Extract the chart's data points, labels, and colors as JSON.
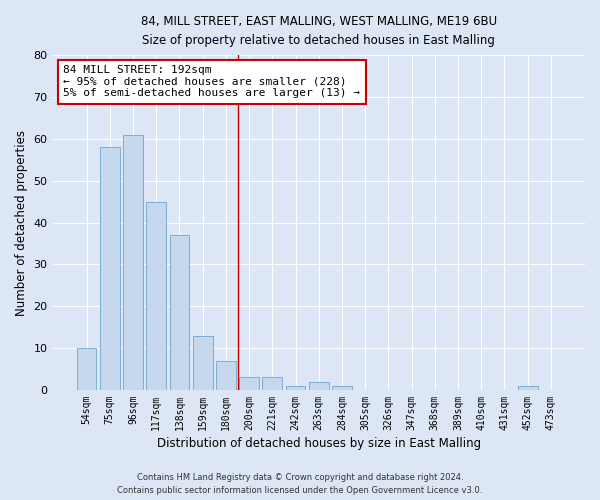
{
  "title_line1": "84, MILL STREET, EAST MALLING, WEST MALLING, ME19 6BU",
  "title_line2": "Size of property relative to detached houses in East Malling",
  "xlabel": "Distribution of detached houses by size in East Malling",
  "ylabel": "Number of detached properties",
  "categories": [
    "54sqm",
    "75sqm",
    "96sqm",
    "117sqm",
    "138sqm",
    "159sqm",
    "180sqm",
    "200sqm",
    "221sqm",
    "242sqm",
    "263sqm",
    "284sqm",
    "305sqm",
    "326sqm",
    "347sqm",
    "368sqm",
    "389sqm",
    "410sqm",
    "431sqm",
    "452sqm",
    "473sqm"
  ],
  "values": [
    10,
    58,
    61,
    45,
    37,
    13,
    7,
    3,
    3,
    1,
    2,
    1,
    0,
    0,
    0,
    0,
    0,
    0,
    0,
    1,
    0
  ],
  "bar_color": "#c5d8ee",
  "bar_edge_color": "#7dafd4",
  "background_color": "#dce6f5",
  "grid_color": "#ffffff",
  "vline_x": 6.5,
  "vline_color": "#cc0000",
  "annotation_text": "84 MILL STREET: 192sqm\n← 95% of detached houses are smaller (228)\n5% of semi-detached houses are larger (13) →",
  "annotation_box_color": "#cc0000",
  "ylim": [
    0,
    80
  ],
  "yticks": [
    0,
    10,
    20,
    30,
    40,
    50,
    60,
    70,
    80
  ],
  "footer_line1": "Contains HM Land Registry data © Crown copyright and database right 2024.",
  "footer_line2": "Contains public sector information licensed under the Open Government Licence v3.0."
}
